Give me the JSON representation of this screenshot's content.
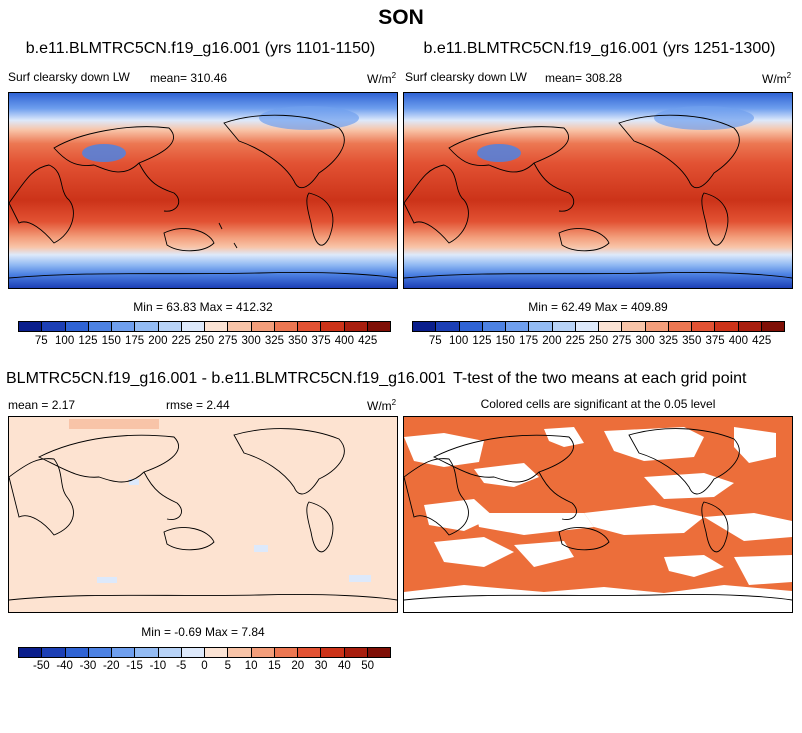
{
  "figure": {
    "season": "SON",
    "panel1": {
      "title": "b.e11.BLMTRC5CN.f19_g16.001 (yrs 1101-1150)",
      "var_label": "Surf clearsky down LW",
      "mean_label": "mean= 310.46",
      "units": "W/m",
      "units_exp": "2",
      "stats": "Min =  63.83 Max = 412.32"
    },
    "panel2": {
      "title": "b.e11.BLMTRC5CN.f19_g16.001 (yrs 1251-1300)",
      "var_label": "Surf clearsky down LW",
      "mean_label": "mean= 308.28",
      "units": "W/m",
      "units_exp": "2",
      "stats": "Min =  62.49 Max = 409.89"
    },
    "panel3": {
      "title": "BLMTRC5CN.f19_g16.001 - b.e11.BLMTRC5CN.f19_g16.001",
      "mean_label": "mean =   2.17",
      "rmse_label": "rmse =   2.44",
      "units": "W/m",
      "units_exp": "2",
      "stats": "Min =  -0.69 Max =   7.84"
    },
    "panel4": {
      "title": "T-test of the two means at each grid point",
      "subtitle": "Colored cells are significant at the 0.05 level"
    }
  },
  "chart_data": [
    {
      "type": "heatmap",
      "title": "b.e11.BLMTRC5CN.f19_g16.001 (yrs 1101-1150)",
      "variable": "Surf clearsky down LW",
      "units": "W/m2",
      "mean": 310.46,
      "min": 63.83,
      "max": 412.32,
      "colorbar_levels": [
        "75",
        "100",
        "125",
        "150",
        "175",
        "200",
        "225",
        "250",
        "275",
        "300",
        "325",
        "350",
        "375",
        "400",
        "425"
      ],
      "colorbar_colors": [
        "#0a1e8c",
        "#1c3fb5",
        "#2f63d4",
        "#4d82e3",
        "#6f9fee",
        "#93bbf3",
        "#b8d3f7",
        "#dde9fb",
        "#fbe3d4",
        "#f8c4a8",
        "#f39e7b",
        "#ec7752",
        "#e25233",
        "#cc3319",
        "#a81e0e",
        "#7f0f06"
      ]
    },
    {
      "type": "heatmap",
      "title": "b.e11.BLMTRC5CN.f19_g16.001 (yrs 1251-1300)",
      "variable": "Surf clearsky down LW",
      "units": "W/m2",
      "mean": 308.28,
      "min": 62.49,
      "max": 409.89,
      "colorbar_levels": [
        "75",
        "100",
        "125",
        "150",
        "175",
        "200",
        "225",
        "250",
        "275",
        "300",
        "325",
        "350",
        "375",
        "400",
        "425"
      ],
      "colorbar_colors": [
        "#0a1e8c",
        "#1c3fb5",
        "#2f63d4",
        "#4d82e3",
        "#6f9fee",
        "#93bbf3",
        "#b8d3f7",
        "#dde9fb",
        "#fbe3d4",
        "#f8c4a8",
        "#f39e7b",
        "#ec7752",
        "#e25233",
        "#cc3319",
        "#a81e0e",
        "#7f0f06"
      ]
    },
    {
      "type": "heatmap",
      "title": "BLMTRC5CN.f19_g16.001 - b.e11.BLMTRC5CN.f19_g16.001",
      "units": "W/m2",
      "mean": 2.17,
      "rmse": 2.44,
      "min": -0.69,
      "max": 7.84,
      "colorbar_levels": [
        "-50",
        "-40",
        "-30",
        "-20",
        "-15",
        "-10",
        "-5",
        "0",
        "5",
        "10",
        "15",
        "20",
        "30",
        "40",
        "50"
      ],
      "colorbar_colors": [
        "#0a1e8c",
        "#1c3fb5",
        "#2f63d4",
        "#4d82e3",
        "#6f9fee",
        "#93bbf3",
        "#b8d3f7",
        "#dde9fb",
        "#fbe3d4",
        "#f8c4a8",
        "#f39e7b",
        "#ec7752",
        "#e25233",
        "#cc3319",
        "#a81e0e",
        "#7f0f06"
      ]
    },
    {
      "type": "heatmap",
      "title": "T-test of the two means at each grid point",
      "subtitle": "Colored cells are significant at the 0.05 level",
      "significance_level": 0.05,
      "significant_color": "#ec6e3a"
    }
  ],
  "colors": {
    "diff_background": "#fde3d1",
    "ttest_fill": "#ec6e3a",
    "land_outline": "#000000"
  }
}
